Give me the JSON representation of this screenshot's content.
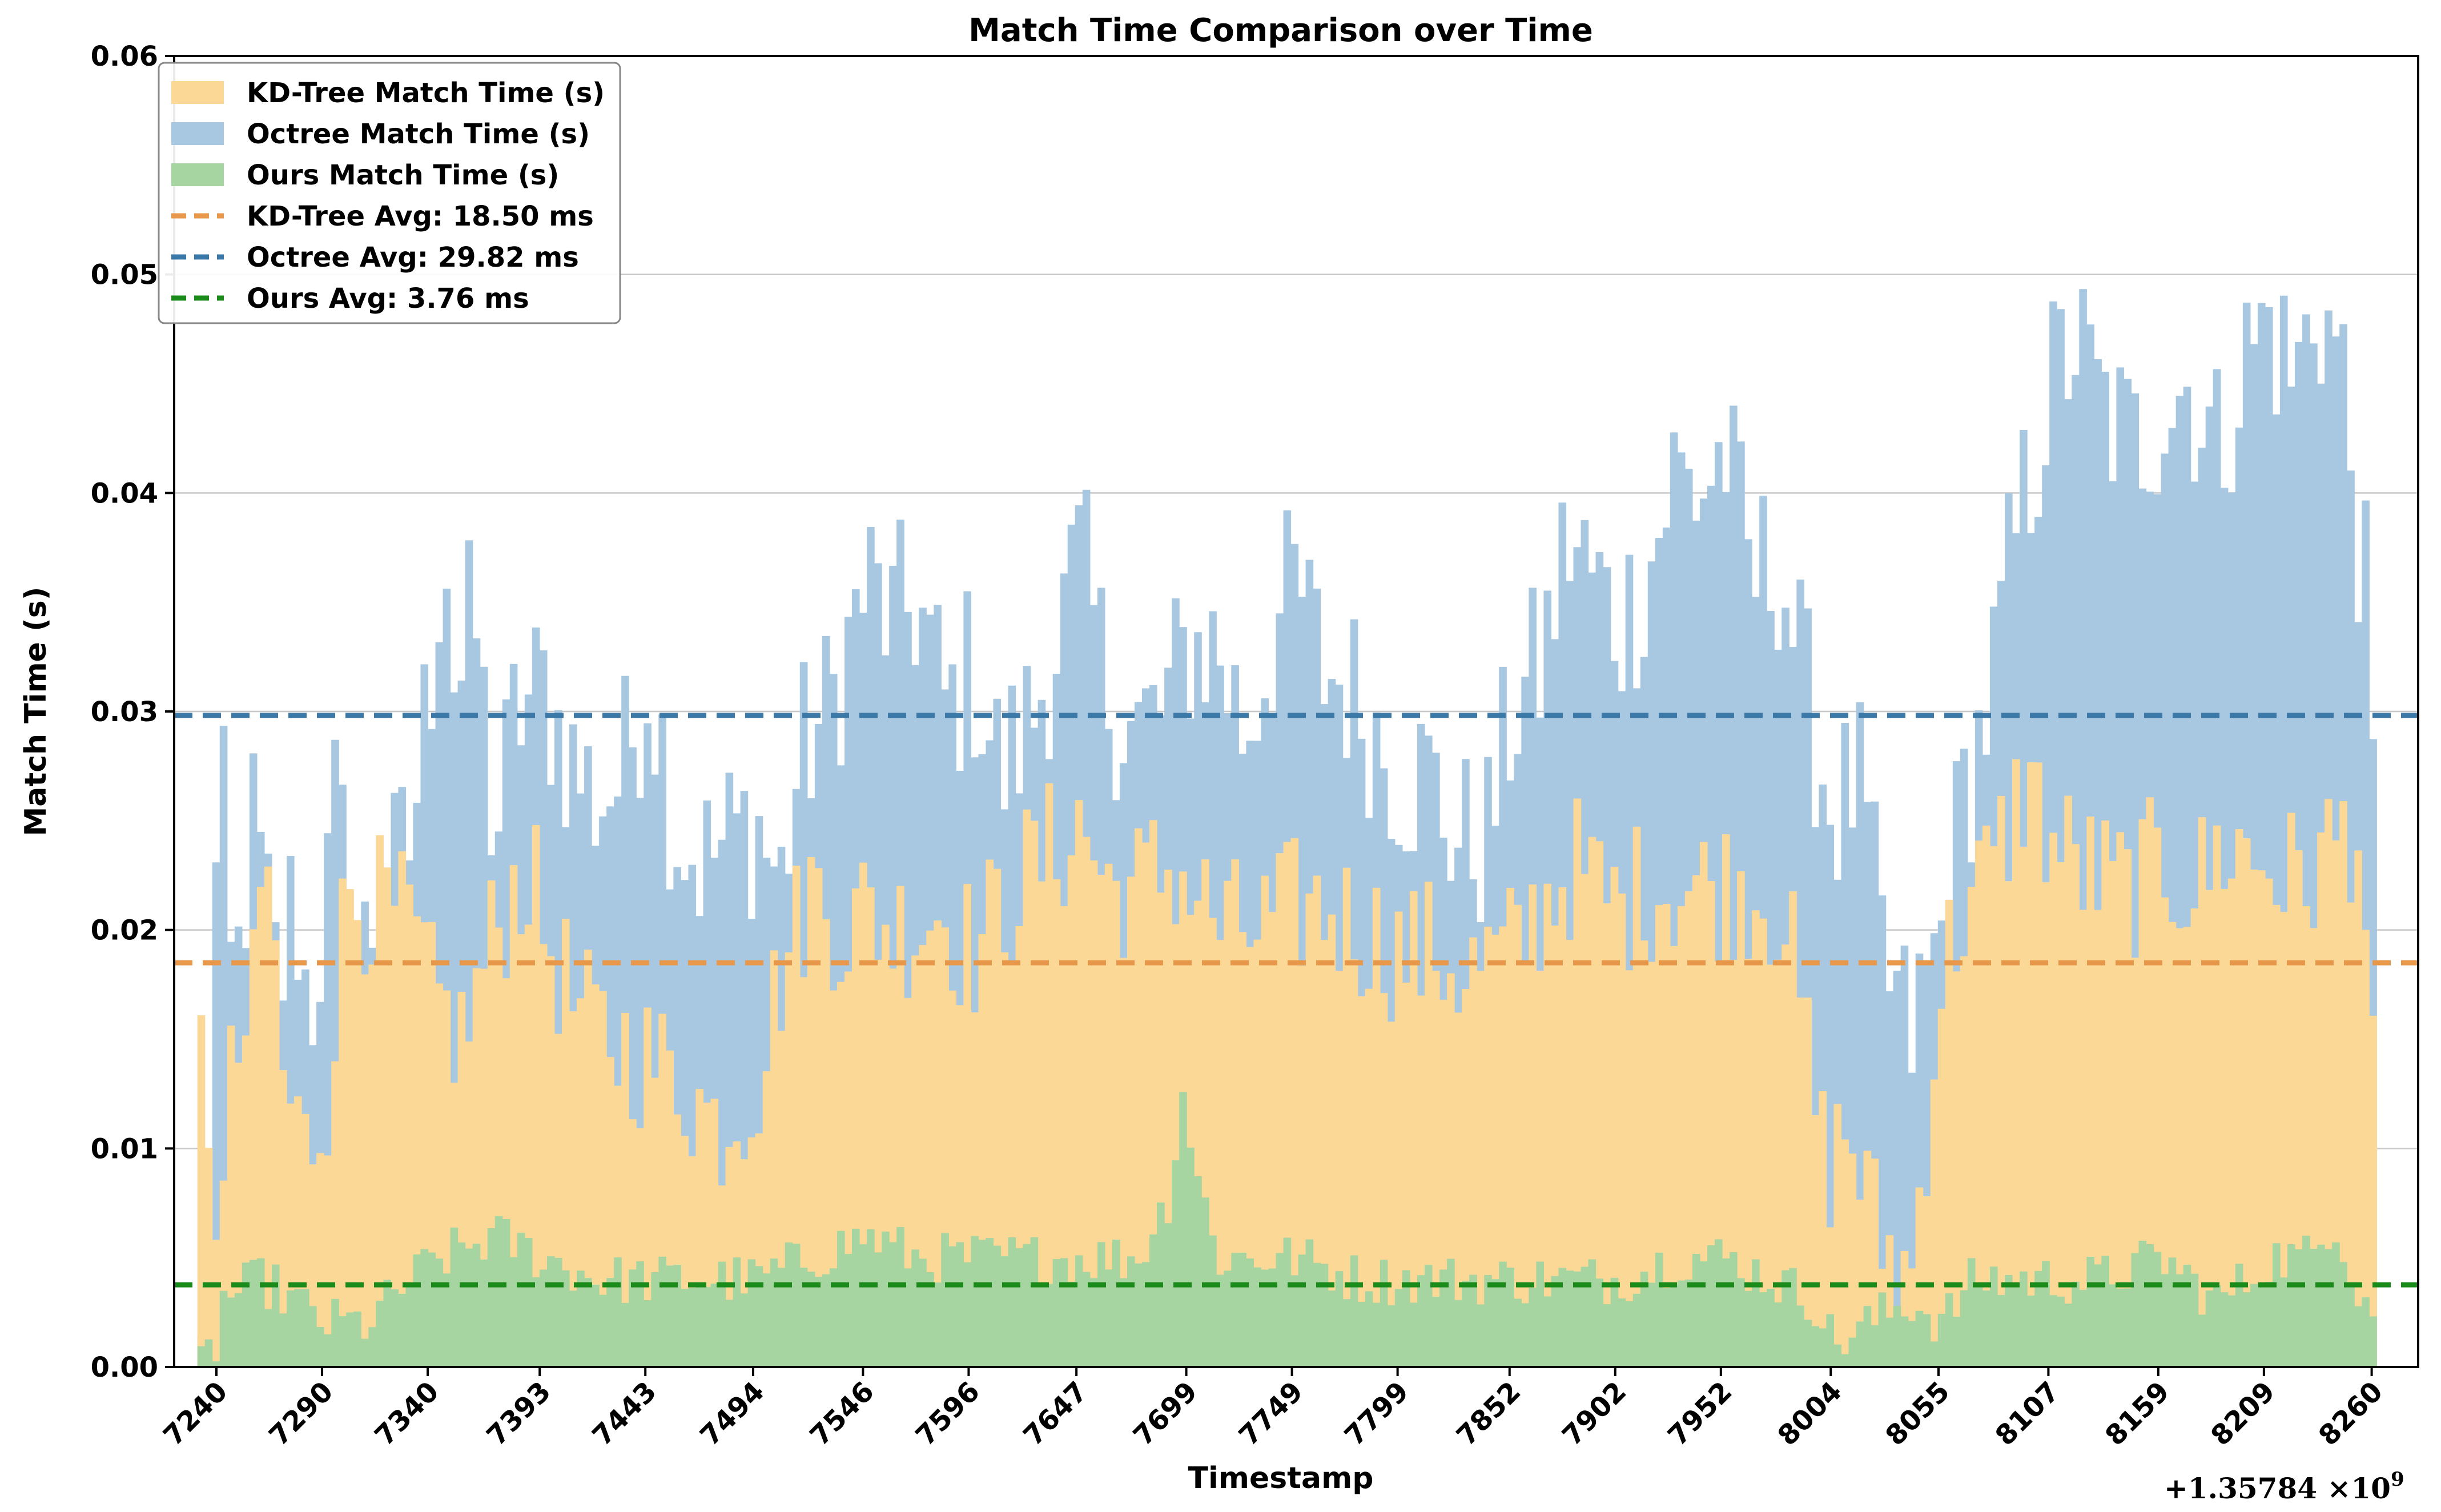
{
  "chart_data": {
    "type": "bar",
    "title": "Match Time Comparison over Time",
    "xlabel": "Timestamp",
    "ylabel": "Match Time (s)",
    "x_offset_label": "+1.35784 ×10",
    "x_offset_exponent": "9",
    "ylim": [
      0,
      0.06
    ],
    "xlim": [
      7220,
      8282
    ],
    "grid": "y",
    "legend_position": "top-left",
    "x_ticks": [
      7240,
      7290,
      7340,
      7393,
      7443,
      7494,
      7546,
      7596,
      7647,
      7699,
      7749,
      7799,
      7852,
      7902,
      7952,
      8004,
      8055,
      8107,
      8159,
      8209,
      8260
    ],
    "x_tick_labels": [
      "7240",
      "7290",
      "7340",
      "7393",
      "7443",
      "7494",
      "7546",
      "7596",
      "7647",
      "7699",
      "7749",
      "7799",
      "7852",
      "7902",
      "7952",
      "8004",
      "8055",
      "8107",
      "8159",
      "8209",
      "8260"
    ],
    "y_ticks": [
      0,
      0.01,
      0.02,
      0.03,
      0.04,
      0.05,
      0.06
    ],
    "y_tick_labels": [
      "0.00",
      "0.01",
      "0.02",
      "0.03",
      "0.04",
      "0.05",
      "0.06"
    ],
    "x_start": 7231,
    "x_step": 3.52,
    "series": [
      {
        "name": "Octree Match Time (s)",
        "color": "#a8c8e2",
        "anchors": [
          [
            7231,
            0.0
          ],
          [
            7240,
            0.028
          ],
          [
            7246,
            0.016
          ],
          [
            7255,
            0.025
          ],
          [
            7262,
            0.021
          ],
          [
            7268,
            0.017
          ],
          [
            7275,
            0.022
          ],
          [
            7282,
            0.016
          ],
          [
            7290,
            0.021
          ],
          [
            7296,
            0.027
          ],
          [
            7302,
            0.016
          ],
          [
            7310,
            0.02
          ],
          [
            7320,
            0.022
          ],
          [
            7330,
            0.024
          ],
          [
            7340,
            0.032
          ],
          [
            7346,
            0.039
          ],
          [
            7352,
            0.03
          ],
          [
            7360,
            0.035
          ],
          [
            7370,
            0.024
          ],
          [
            7380,
            0.03
          ],
          [
            7393,
            0.031
          ],
          [
            7405,
            0.028
          ],
          [
            7418,
            0.026
          ],
          [
            7430,
            0.027
          ],
          [
            7443,
            0.032
          ],
          [
            7455,
            0.025
          ],
          [
            7468,
            0.023
          ],
          [
            7480,
            0.024
          ],
          [
            7494,
            0.025
          ],
          [
            7505,
            0.022
          ],
          [
            7515,
            0.028
          ],
          [
            7528,
            0.03
          ],
          [
            7546,
            0.036
          ],
          [
            7558,
            0.034
          ],
          [
            7570,
            0.035
          ],
          [
            7584,
            0.03
          ],
          [
            7596,
            0.032
          ],
          [
            7610,
            0.027
          ],
          [
            7625,
            0.03
          ],
          [
            7638,
            0.034
          ],
          [
            7647,
            0.037
          ],
          [
            7660,
            0.031
          ],
          [
            7673,
            0.029
          ],
          [
            7686,
            0.03
          ],
          [
            7699,
            0.033
          ],
          [
            7712,
            0.033
          ],
          [
            7725,
            0.029
          ],
          [
            7737,
            0.033
          ],
          [
            7749,
            0.036
          ],
          [
            7762,
            0.032
          ],
          [
            7775,
            0.031
          ],
          [
            7787,
            0.029
          ],
          [
            7799,
            0.027
          ],
          [
            7812,
            0.027
          ],
          [
            7826,
            0.024
          ],
          [
            7839,
            0.024
          ],
          [
            7852,
            0.03
          ],
          [
            7865,
            0.032
          ],
          [
            7878,
            0.038
          ],
          [
            7890,
            0.036
          ],
          [
            7902,
            0.034
          ],
          [
            7915,
            0.036
          ],
          [
            7928,
            0.041
          ],
          [
            7940,
            0.04
          ],
          [
            7952,
            0.042
          ],
          [
            7965,
            0.036
          ],
          [
            7978,
            0.037
          ],
          [
            7990,
            0.031
          ],
          [
            8004,
            0.025
          ],
          [
            8015,
            0.027
          ],
          [
            8028,
            0.018
          ],
          [
            8040,
            0.015
          ],
          [
            8055,
            0.02
          ],
          [
            8065,
            0.026
          ],
          [
            8076,
            0.03
          ],
          [
            8090,
            0.038
          ],
          [
            8107,
            0.045
          ],
          [
            8118,
            0.047
          ],
          [
            8130,
            0.044
          ],
          [
            8145,
            0.042
          ],
          [
            8159,
            0.044
          ],
          [
            8172,
            0.045
          ],
          [
            8185,
            0.042
          ],
          [
            8198,
            0.046
          ],
          [
            8209,
            0.048
          ],
          [
            8222,
            0.045
          ],
          [
            8232,
            0.049
          ],
          [
            8244,
            0.046
          ],
          [
            8252,
            0.038
          ],
          [
            8258,
            0.033
          ],
          [
            8262,
            0.0
          ]
        ],
        "jitter": 0.0045
      },
      {
        "name": "KD-Tree Match Time (s)",
        "color": "#fcd897",
        "anchors": [
          [
            7231,
            0.014
          ],
          [
            7236,
            0.011
          ],
          [
            7240,
            0.005
          ],
          [
            7246,
            0.014
          ],
          [
            7255,
            0.016
          ],
          [
            7262,
            0.024
          ],
          [
            7270,
            0.013
          ],
          [
            7280,
            0.01
          ],
          [
            7290,
            0.012
          ],
          [
            7300,
            0.022
          ],
          [
            7315,
            0.021
          ],
          [
            7330,
            0.02
          ],
          [
            7340,
            0.017
          ],
          [
            7355,
            0.015
          ],
          [
            7370,
            0.02
          ],
          [
            7385,
            0.023
          ],
          [
            7393,
            0.02
          ],
          [
            7410,
            0.016
          ],
          [
            7425,
            0.015
          ],
          [
            7443,
            0.014
          ],
          [
            7460,
            0.013
          ],
          [
            7475,
            0.011
          ],
          [
            7494,
            0.013
          ],
          [
            7505,
            0.018
          ],
          [
            7520,
            0.022
          ],
          [
            7535,
            0.02
          ],
          [
            7546,
            0.021
          ],
          [
            7560,
            0.02
          ],
          [
            7580,
            0.021
          ],
          [
            7596,
            0.019
          ],
          [
            7610,
            0.021
          ],
          [
            7625,
            0.023
          ],
          [
            7640,
            0.024
          ],
          [
            7647,
            0.025
          ],
          [
            7660,
            0.022
          ],
          [
            7675,
            0.022
          ],
          [
            7690,
            0.023
          ],
          [
            7699,
            0.022
          ],
          [
            7715,
            0.02
          ],
          [
            7730,
            0.02
          ],
          [
            7749,
            0.021
          ],
          [
            7765,
            0.021
          ],
          [
            7780,
            0.02
          ],
          [
            7799,
            0.019
          ],
          [
            7815,
            0.019
          ],
          [
            7830,
            0.018
          ],
          [
            7852,
            0.019
          ],
          [
            7865,
            0.021
          ],
          [
            7880,
            0.023
          ],
          [
            7902,
            0.021
          ],
          [
            7915,
            0.022
          ],
          [
            7930,
            0.022
          ],
          [
            7952,
            0.022
          ],
          [
            7965,
            0.022
          ],
          [
            7980,
            0.021
          ],
          [
            7990,
            0.015
          ],
          [
            8000,
            0.009
          ],
          [
            8010,
            0.011
          ],
          [
            8025,
            0.006
          ],
          [
            8040,
            0.004
          ],
          [
            8055,
            0.018
          ],
          [
            8065,
            0.021
          ],
          [
            8080,
            0.023
          ],
          [
            8095,
            0.027
          ],
          [
            8107,
            0.024
          ],
          [
            8120,
            0.023
          ],
          [
            8135,
            0.022
          ],
          [
            8145,
            0.022
          ],
          [
            8159,
            0.023
          ],
          [
            8175,
            0.022
          ],
          [
            8190,
            0.024
          ],
          [
            8209,
            0.023
          ],
          [
            8225,
            0.022
          ],
          [
            8240,
            0.024
          ],
          [
            8252,
            0.025
          ],
          [
            8258,
            0.016
          ],
          [
            8262,
            0.0
          ]
        ],
        "jitter": 0.0035
      },
      {
        "name": "Ours Match Time (s)",
        "color": "#a7d5a2",
        "anchors": [
          [
            7231,
            0.0
          ],
          [
            7238,
            0.001
          ],
          [
            7240,
            0.003
          ],
          [
            7260,
            0.004
          ],
          [
            7290,
            0.002
          ],
          [
            7310,
            0.002
          ],
          [
            7330,
            0.004
          ],
          [
            7345,
            0.005
          ],
          [
            7370,
            0.006
          ],
          [
            7393,
            0.005
          ],
          [
            7420,
            0.004
          ],
          [
            7443,
            0.004
          ],
          [
            7470,
            0.004
          ],
          [
            7494,
            0.004
          ],
          [
            7520,
            0.005
          ],
          [
            7546,
            0.006
          ],
          [
            7570,
            0.005
          ],
          [
            7596,
            0.005
          ],
          [
            7620,
            0.005
          ],
          [
            7647,
            0.005
          ],
          [
            7675,
            0.005
          ],
          [
            7690,
            0.008
          ],
          [
            7695,
            0.013
          ],
          [
            7702,
            0.009
          ],
          [
            7712,
            0.005
          ],
          [
            7749,
            0.005
          ],
          [
            7780,
            0.004
          ],
          [
            7799,
            0.004
          ],
          [
            7830,
            0.004
          ],
          [
            7852,
            0.004
          ],
          [
            7880,
            0.004
          ],
          [
            7902,
            0.004
          ],
          [
            7930,
            0.005
          ],
          [
            7952,
            0.005
          ],
          [
            7975,
            0.004
          ],
          [
            7995,
            0.003
          ],
          [
            8004,
            0.001
          ],
          [
            8020,
            0.002
          ],
          [
            8040,
            0.003
          ],
          [
            8055,
            0.002
          ],
          [
            8070,
            0.004
          ],
          [
            8090,
            0.004
          ],
          [
            8107,
            0.004
          ],
          [
            8130,
            0.004
          ],
          [
            8159,
            0.005
          ],
          [
            8185,
            0.003
          ],
          [
            8200,
            0.004
          ],
          [
            8209,
            0.005
          ],
          [
            8230,
            0.005
          ],
          [
            8240,
            0.007
          ],
          [
            8250,
            0.004
          ],
          [
            8262,
            0.002
          ]
        ],
        "jitter": 0.0012
      }
    ],
    "averages": [
      {
        "name": "KD-Tree Avg: 18.50 ms",
        "value": 0.0185,
        "color": "#e8984a"
      },
      {
        "name": "Octree Avg: 29.82 ms",
        "value": 0.02982,
        "color": "#3a78a8"
      },
      {
        "name": "Ours Avg: 3.76 ms",
        "value": 0.00376,
        "color": "#1a8a1a"
      }
    ],
    "legend": [
      {
        "label": "KD-Tree Match Time (s)",
        "kind": "patch",
        "color": "#fcd897"
      },
      {
        "label": "Octree Match Time (s)",
        "kind": "patch",
        "color": "#a8c8e2"
      },
      {
        "label": "Ours Match Time (s)",
        "kind": "patch",
        "color": "#a7d5a2"
      },
      {
        "label": "KD-Tree Avg: 18.50 ms",
        "kind": "dash",
        "color": "#e8984a"
      },
      {
        "label": "Octree Avg: 29.82 ms",
        "kind": "dash",
        "color": "#3a78a8"
      },
      {
        "label": "Ours Avg: 3.76 ms",
        "kind": "dash",
        "color": "#1a8a1a"
      }
    ]
  }
}
